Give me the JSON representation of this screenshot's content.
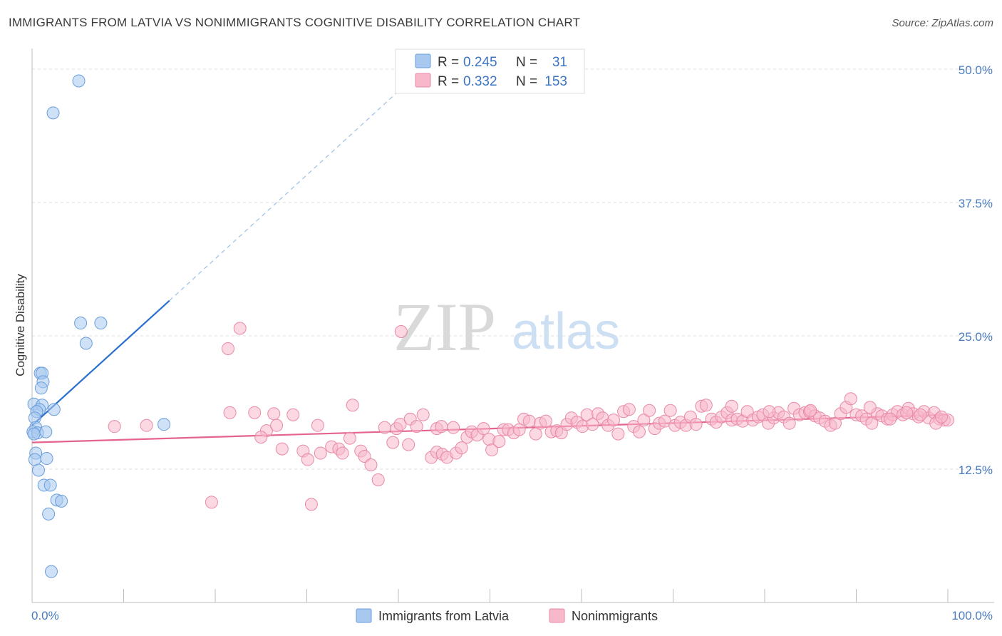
{
  "title": "IMMIGRANTS FROM LATVIA VS NONIMMIGRANTS COGNITIVE DISABILITY CORRELATION CHART",
  "source": "Source: ZipAtlas.com",
  "watermark": {
    "zip": "ZIP",
    "atlas": "atlas"
  },
  "legend": {
    "rows": [
      {
        "r_label": "R =",
        "r_value": "0.245",
        "n_label": "N =",
        "n_value": "31",
        "color": "#a8c8f0"
      },
      {
        "r_label": "R =",
        "r_value": "0.332",
        "n_label": "N =",
        "n_value": "153",
        "color": "#f7b8ca"
      }
    ]
  },
  "bottom_legend": [
    {
      "label": "Immigrants from Latvia",
      "color": "#a8c8f0"
    },
    {
      "label": "Nonimmigrants",
      "color": "#f7b8ca"
    }
  ],
  "chart_data": {
    "type": "scatter",
    "title": "IMMIGRANTS FROM LATVIA VS NONIMMIGRANTS COGNITIVE DISABILITY CORRELATION CHART",
    "xlabel": "",
    "ylabel": "Cognitive Disability",
    "xlim": [
      0,
      100
    ],
    "ylim": [
      0,
      52.5
    ],
    "x_tick_labels": [
      "0.0%",
      "100.0%"
    ],
    "y_ticks": [
      12.5,
      25.0,
      37.5,
      50.0
    ],
    "y_tick_labels": [
      "12.5%",
      "25.0%",
      "37.5%",
      "50.0%"
    ],
    "grid": true,
    "legend_position": "top-center",
    "series": [
      {
        "name": "Immigrants from Latvia",
        "color": "#a8c8f0",
        "stroke": "#6a9edb",
        "trend_color": "#2a6fce",
        "trend": {
          "x0": 0,
          "y0": 16.6,
          "x1": 15,
          "y1": 28.3,
          "dash_to_x": 42,
          "dash_to_y": 49.5
        },
        "points": [
          {
            "x": 5.1,
            "y": 48.9
          },
          {
            "x": 2.3,
            "y": 45.9
          },
          {
            "x": 5.3,
            "y": 26.2
          },
          {
            "x": 7.5,
            "y": 26.2
          },
          {
            "x": 5.9,
            "y": 24.3
          },
          {
            "x": 0.9,
            "y": 21.5
          },
          {
            "x": 1.1,
            "y": 21.5
          },
          {
            "x": 1.2,
            "y": 20.7
          },
          {
            "x": 1.0,
            "y": 20.1
          },
          {
            "x": 0.2,
            "y": 18.6
          },
          {
            "x": 1.1,
            "y": 18.5
          },
          {
            "x": 0.8,
            "y": 18.1
          },
          {
            "x": 0.5,
            "y": 17.9
          },
          {
            "x": 2.4,
            "y": 18.1
          },
          {
            "x": 0.3,
            "y": 17.3
          },
          {
            "x": 0.4,
            "y": 16.4
          },
          {
            "x": 0.1,
            "y": 16.0
          },
          {
            "x": 0.6,
            "y": 15.9
          },
          {
            "x": 1.5,
            "y": 16.0
          },
          {
            "x": 14.4,
            "y": 16.7
          },
          {
            "x": 0.4,
            "y": 14.0
          },
          {
            "x": 1.6,
            "y": 13.5
          },
          {
            "x": 0.3,
            "y": 13.4
          },
          {
            "x": 0.7,
            "y": 12.4
          },
          {
            "x": 1.3,
            "y": 11.0
          },
          {
            "x": 2.0,
            "y": 11.0
          },
          {
            "x": 2.7,
            "y": 9.6
          },
          {
            "x": 3.2,
            "y": 9.5
          },
          {
            "x": 1.8,
            "y": 8.3
          },
          {
            "x": 2.1,
            "y": 2.9
          },
          {
            "x": 0.2,
            "y": 15.8
          }
        ]
      },
      {
        "name": "Nonimmigrants",
        "color": "#f7b8ca",
        "stroke": "#e88aa6",
        "trend_color": "#e5638f",
        "trend": {
          "x0": 0,
          "y0": 15.0,
          "x1": 100,
          "y1": 17.6
        },
        "points": [
          {
            "x": 22.7,
            "y": 25.7
          },
          {
            "x": 40.3,
            "y": 25.4
          },
          {
            "x": 21.4,
            "y": 23.8
          },
          {
            "x": 9.0,
            "y": 16.5
          },
          {
            "x": 12.5,
            "y": 16.6
          },
          {
            "x": 19.6,
            "y": 9.4
          },
          {
            "x": 30.5,
            "y": 9.2
          },
          {
            "x": 21.6,
            "y": 17.8
          },
          {
            "x": 24.3,
            "y": 17.8
          },
          {
            "x": 26.4,
            "y": 17.7
          },
          {
            "x": 28.5,
            "y": 17.6
          },
          {
            "x": 25.6,
            "y": 16.1
          },
          {
            "x": 26.7,
            "y": 16.6
          },
          {
            "x": 31.2,
            "y": 16.6
          },
          {
            "x": 35.0,
            "y": 18.5
          },
          {
            "x": 25.0,
            "y": 15.5
          },
          {
            "x": 27.3,
            "y": 14.4
          },
          {
            "x": 29.6,
            "y": 14.2
          },
          {
            "x": 30.1,
            "y": 13.4
          },
          {
            "x": 31.5,
            "y": 14.0
          },
          {
            "x": 32.7,
            "y": 14.6
          },
          {
            "x": 33.5,
            "y": 14.4
          },
          {
            "x": 33.9,
            "y": 14.0
          },
          {
            "x": 34.7,
            "y": 15.4
          },
          {
            "x": 35.9,
            "y": 14.2
          },
          {
            "x": 36.3,
            "y": 13.7
          },
          {
            "x": 37.0,
            "y": 12.9
          },
          {
            "x": 37.8,
            "y": 11.5
          },
          {
            "x": 38.5,
            "y": 16.4
          },
          {
            "x": 39.4,
            "y": 15.0
          },
          {
            "x": 39.8,
            "y": 16.3
          },
          {
            "x": 40.2,
            "y": 16.7
          },
          {
            "x": 41.3,
            "y": 17.2
          },
          {
            "x": 42.0,
            "y": 16.5
          },
          {
            "x": 42.7,
            "y": 17.6
          },
          {
            "x": 41.1,
            "y": 14.8
          },
          {
            "x": 43.6,
            "y": 13.6
          },
          {
            "x": 44.2,
            "y": 14.1
          },
          {
            "x": 44.8,
            "y": 13.9
          },
          {
            "x": 45.3,
            "y": 13.6
          },
          {
            "x": 44.2,
            "y": 16.3
          },
          {
            "x": 44.7,
            "y": 16.5
          },
          {
            "x": 46.0,
            "y": 16.4
          },
          {
            "x": 46.3,
            "y": 14.0
          },
          {
            "x": 46.9,
            "y": 14.5
          },
          {
            "x": 47.5,
            "y": 15.5
          },
          {
            "x": 48.0,
            "y": 16.0
          },
          {
            "x": 48.6,
            "y": 15.7
          },
          {
            "x": 49.3,
            "y": 16.3
          },
          {
            "x": 49.9,
            "y": 15.3
          },
          {
            "x": 50.2,
            "y": 14.3
          },
          {
            "x": 51.0,
            "y": 15.1
          },
          {
            "x": 51.5,
            "y": 16.2
          },
          {
            "x": 52.0,
            "y": 16.2
          },
          {
            "x": 52.6,
            "y": 15.9
          },
          {
            "x": 53.2,
            "y": 16.2
          },
          {
            "x": 53.7,
            "y": 17.2
          },
          {
            "x": 54.3,
            "y": 17.0
          },
          {
            "x": 55.0,
            "y": 15.8
          },
          {
            "x": 55.5,
            "y": 16.8
          },
          {
            "x": 56.1,
            "y": 17.0
          },
          {
            "x": 56.7,
            "y": 16.0
          },
          {
            "x": 57.3,
            "y": 16.1
          },
          {
            "x": 57.8,
            "y": 15.9
          },
          {
            "x": 58.4,
            "y": 16.7
          },
          {
            "x": 58.9,
            "y": 17.3
          },
          {
            "x": 59.5,
            "y": 16.9
          },
          {
            "x": 60.1,
            "y": 16.5
          },
          {
            "x": 60.6,
            "y": 17.6
          },
          {
            "x": 61.2,
            "y": 16.7
          },
          {
            "x": 61.8,
            "y": 17.7
          },
          {
            "x": 62.3,
            "y": 17.3
          },
          {
            "x": 62.9,
            "y": 16.6
          },
          {
            "x": 63.5,
            "y": 17.1
          },
          {
            "x": 64.0,
            "y": 15.8
          },
          {
            "x": 64.6,
            "y": 17.9
          },
          {
            "x": 65.2,
            "y": 18.1
          },
          {
            "x": 65.7,
            "y": 16.5
          },
          {
            "x": 66.3,
            "y": 16.0
          },
          {
            "x": 66.8,
            "y": 17.1
          },
          {
            "x": 67.4,
            "y": 18.0
          },
          {
            "x": 68.0,
            "y": 16.3
          },
          {
            "x": 68.5,
            "y": 16.8
          },
          {
            "x": 69.1,
            "y": 17.0
          },
          {
            "x": 69.7,
            "y": 18.0
          },
          {
            "x": 70.2,
            "y": 16.6
          },
          {
            "x": 70.8,
            "y": 16.9
          },
          {
            "x": 71.4,
            "y": 16.6
          },
          {
            "x": 71.9,
            "y": 17.4
          },
          {
            "x": 72.5,
            "y": 16.7
          },
          {
            "x": 73.1,
            "y": 18.4
          },
          {
            "x": 73.6,
            "y": 18.5
          },
          {
            "x": 74.2,
            "y": 17.2
          },
          {
            "x": 74.7,
            "y": 16.9
          },
          {
            "x": 75.3,
            "y": 17.4
          },
          {
            "x": 75.9,
            "y": 17.8
          },
          {
            "x": 76.4,
            "y": 17.1
          },
          {
            "x": 77.0,
            "y": 17.2
          },
          {
            "x": 77.6,
            "y": 17.0
          },
          {
            "x": 78.1,
            "y": 17.9
          },
          {
            "x": 78.7,
            "y": 17.1
          },
          {
            "x": 79.3,
            "y": 17.4
          },
          {
            "x": 79.8,
            "y": 17.6
          },
          {
            "x": 80.4,
            "y": 16.8
          },
          {
            "x": 81.0,
            "y": 17.3
          },
          {
            "x": 81.5,
            "y": 17.8
          },
          {
            "x": 82.1,
            "y": 17.4
          },
          {
            "x": 82.7,
            "y": 16.8
          },
          {
            "x": 83.2,
            "y": 18.2
          },
          {
            "x": 83.8,
            "y": 17.6
          },
          {
            "x": 84.4,
            "y": 17.8
          },
          {
            "x": 84.9,
            "y": 17.9
          },
          {
            "x": 85.5,
            "y": 17.5
          },
          {
            "x": 86.0,
            "y": 17.3
          },
          {
            "x": 86.6,
            "y": 17.0
          },
          {
            "x": 87.2,
            "y": 16.6
          },
          {
            "x": 87.7,
            "y": 16.8
          },
          {
            "x": 88.3,
            "y": 17.7
          },
          {
            "x": 88.9,
            "y": 18.3
          },
          {
            "x": 89.4,
            "y": 19.1
          },
          {
            "x": 90.0,
            "y": 17.6
          },
          {
            "x": 90.6,
            "y": 17.5
          },
          {
            "x": 91.1,
            "y": 17.2
          },
          {
            "x": 91.7,
            "y": 16.8
          },
          {
            "x": 92.3,
            "y": 17.7
          },
          {
            "x": 92.8,
            "y": 17.5
          },
          {
            "x": 93.4,
            "y": 17.2
          },
          {
            "x": 94.0,
            "y": 17.6
          },
          {
            "x": 94.5,
            "y": 17.9
          },
          {
            "x": 95.1,
            "y": 17.6
          },
          {
            "x": 95.7,
            "y": 18.2
          },
          {
            "x": 96.2,
            "y": 17.7
          },
          {
            "x": 96.8,
            "y": 17.4
          },
          {
            "x": 97.4,
            "y": 17.9
          },
          {
            "x": 97.9,
            "y": 17.3
          },
          {
            "x": 98.5,
            "y": 17.8
          },
          {
            "x": 99.1,
            "y": 17.2
          },
          {
            "x": 99.6,
            "y": 17.1
          },
          {
            "x": 100.0,
            "y": 17.1
          },
          {
            "x": 76.4,
            "y": 18.4
          },
          {
            "x": 80.5,
            "y": 17.9
          },
          {
            "x": 85.0,
            "y": 18.0
          },
          {
            "x": 91.5,
            "y": 18.3
          },
          {
            "x": 93.7,
            "y": 17.2
          },
          {
            "x": 95.5,
            "y": 17.8
          },
          {
            "x": 97.0,
            "y": 17.6
          },
          {
            "x": 98.7,
            "y": 16.8
          },
          {
            "x": 99.3,
            "y": 17.4
          }
        ]
      }
    ]
  }
}
